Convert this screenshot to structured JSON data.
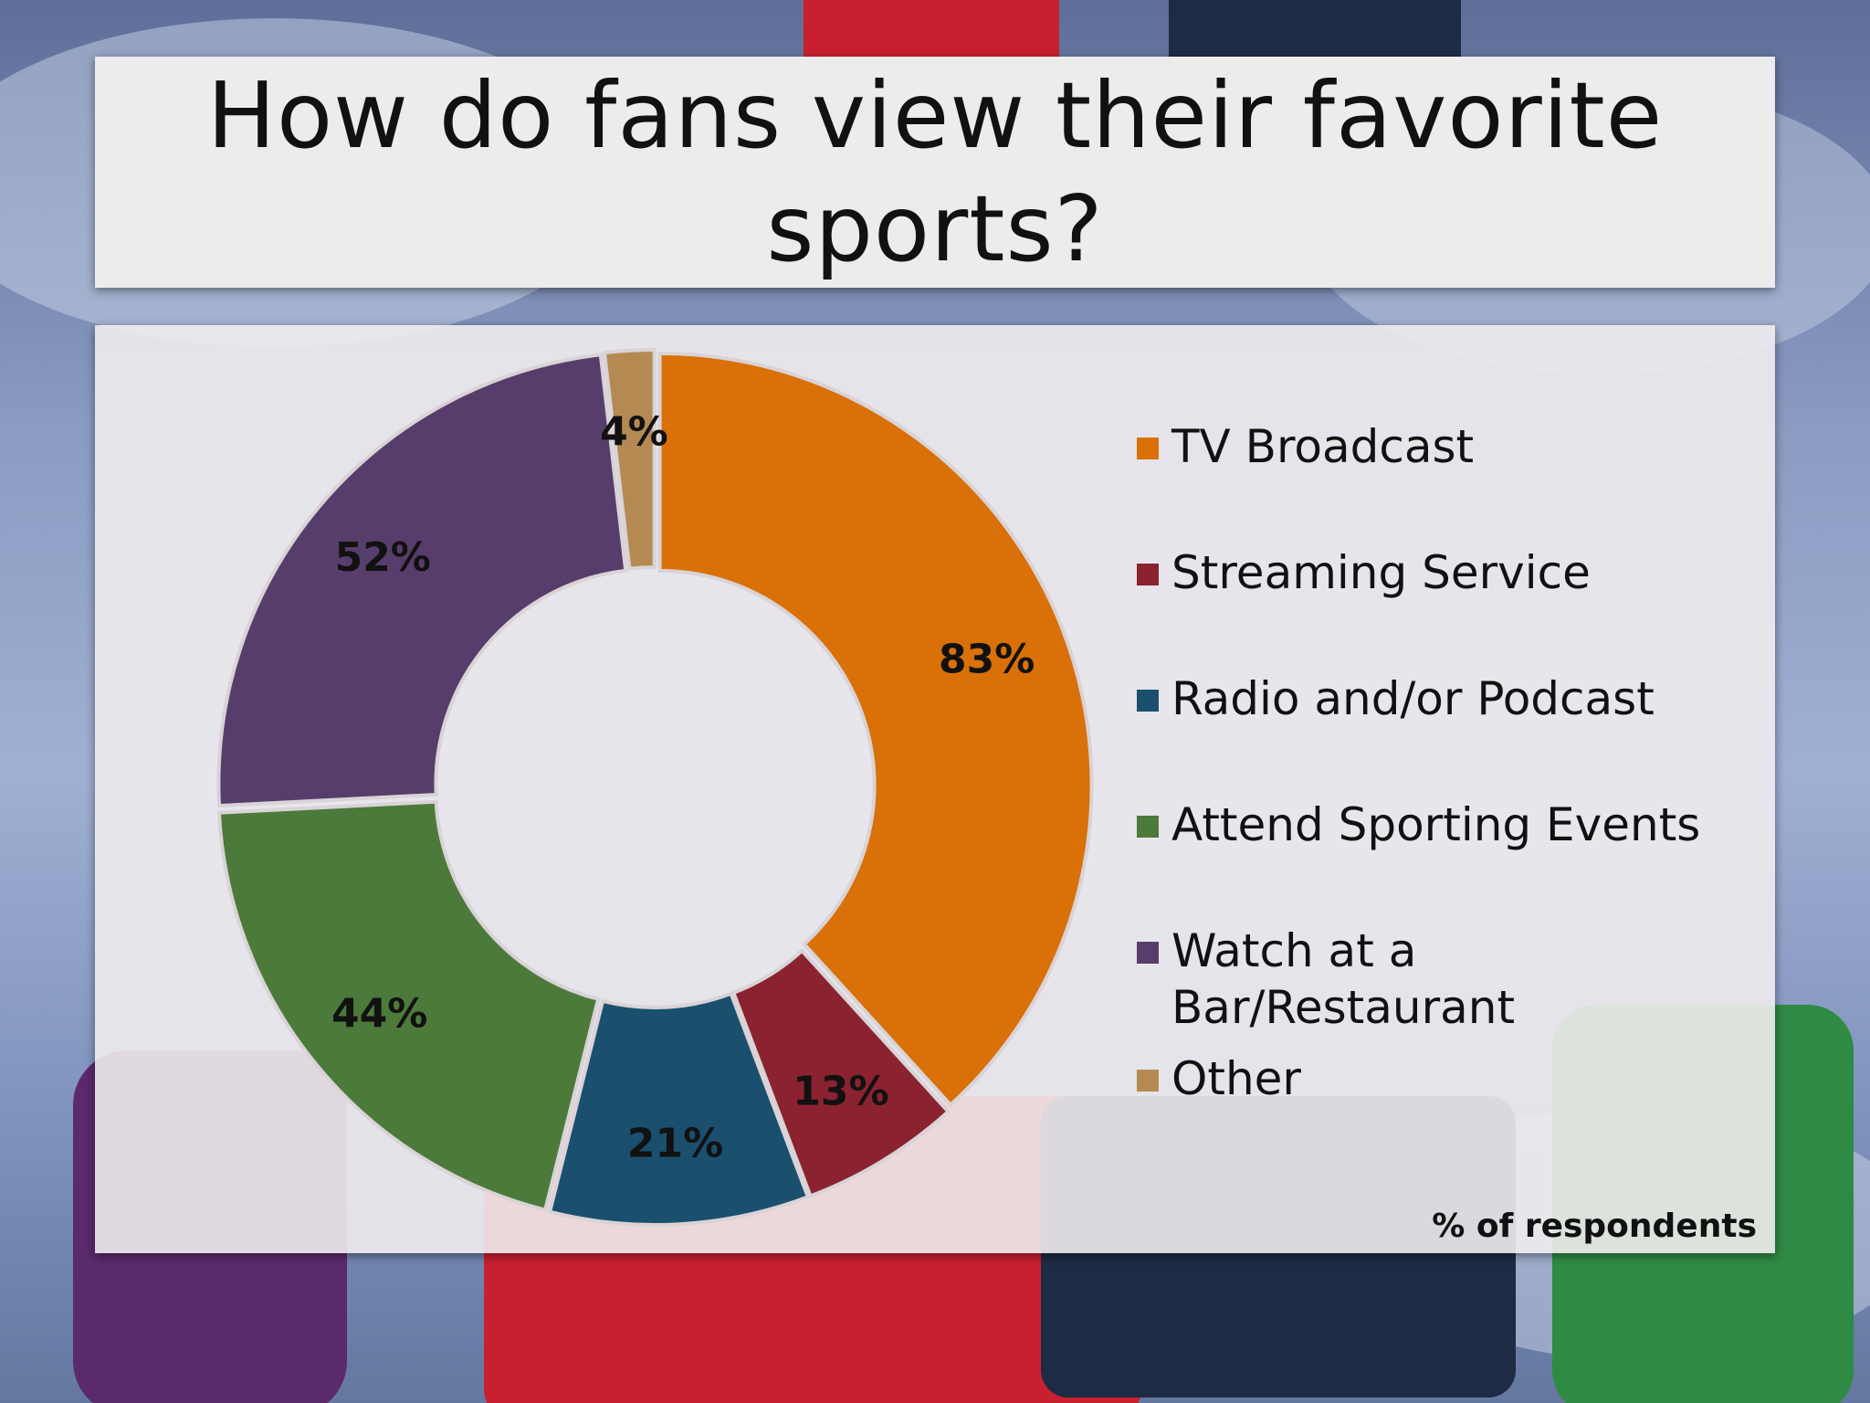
{
  "slide": {
    "title": "How do fans view their favorite sports?",
    "note": "% of respondents"
  },
  "chart_data": {
    "type": "pie",
    "subtype": "doughnut",
    "title": "How do fans view their favorite sports?",
    "categories": [
      "TV Broadcast",
      "Streaming Service",
      "Radio and/or Podcast",
      "Attend Sporting Events",
      "Watch at a Bar/Restaurant",
      "Other"
    ],
    "values": [
      83,
      13,
      21,
      44,
      52,
      4
    ],
    "data_labels": [
      "83%",
      "13%",
      "21%",
      "44%",
      "52%",
      "4%"
    ],
    "colors": [
      "#d97008",
      "#8b2230",
      "#1b4f6e",
      "#4c7a3a",
      "#573d6b",
      "#b48a52"
    ],
    "note": "% of respondents",
    "legend_position": "right"
  }
}
